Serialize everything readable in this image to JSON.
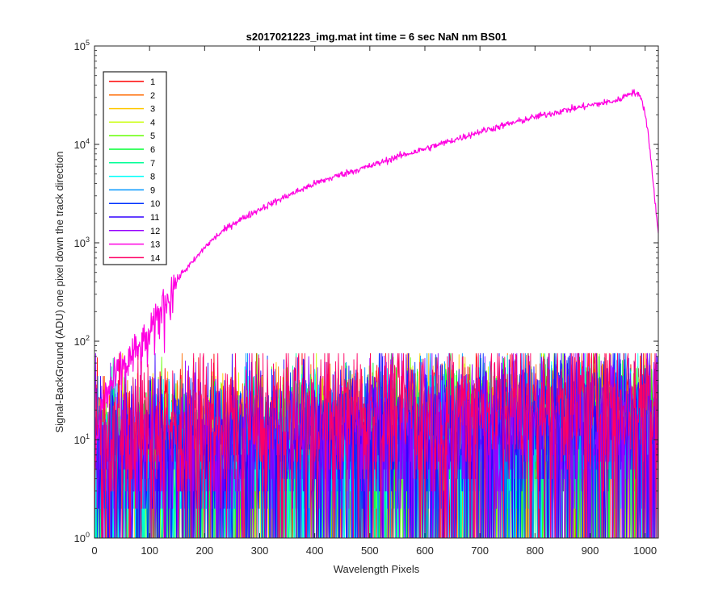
{
  "chart_data": {
    "type": "line",
    "title": "s2017021223_img.mat int time = 6 sec  NaN nm BS01",
    "xlabel": "Wavelength Pixels",
    "ylabel": "Signal-BackGround (ADU) one pixel down the track direction",
    "xlim": [
      0,
      1024
    ],
    "ylim": [
      1,
      100000
    ],
    "yscale": "log",
    "x_ticks": [
      "0",
      "100",
      "200",
      "300",
      "400",
      "500",
      "600",
      "700",
      "800",
      "900",
      "1000"
    ],
    "x_tick_values": [
      0,
      100,
      200,
      300,
      400,
      500,
      600,
      700,
      800,
      900,
      1000
    ],
    "y_tick_values": [
      1,
      10,
      100,
      1000,
      10000,
      100000
    ],
    "y_tick_exponents": [
      "0",
      "1",
      "2",
      "3",
      "4",
      "5"
    ],
    "y_tick_base": "10",
    "grid": false,
    "legend_position": "top-left",
    "series": [
      {
        "name": "1",
        "color": "#ff0000",
        "kind": "noise",
        "level": 12
      },
      {
        "name": "2",
        "color": "#ff6a00",
        "kind": "noise",
        "level": 12
      },
      {
        "name": "3",
        "color": "#ffc800",
        "kind": "noise",
        "level": 11
      },
      {
        "name": "4",
        "color": "#c8ff00",
        "kind": "noise",
        "level": 10
      },
      {
        "name": "5",
        "color": "#64ff00",
        "kind": "noise",
        "level": 10
      },
      {
        "name": "6",
        "color": "#00ff32",
        "kind": "noise",
        "level": 10
      },
      {
        "name": "7",
        "color": "#00ff96",
        "kind": "noise",
        "level": 10
      },
      {
        "name": "8",
        "color": "#00fffa",
        "kind": "noise",
        "level": 10
      },
      {
        "name": "9",
        "color": "#0096ff",
        "kind": "noise",
        "level": 11
      },
      {
        "name": "10",
        "color": "#0032ff",
        "kind": "noise",
        "level": 13
      },
      {
        "name": "11",
        "color": "#3200ff",
        "kind": "noise",
        "level": 14
      },
      {
        "name": "12",
        "color": "#9600ff",
        "kind": "noise",
        "level": 15
      },
      {
        "name": "13",
        "color": "#ff00e1",
        "kind": "signal",
        "profile": [
          [
            0,
            5
          ],
          [
            10,
            18
          ],
          [
            20,
            28
          ],
          [
            30,
            35
          ],
          [
            40,
            45
          ],
          [
            50,
            55
          ],
          [
            60,
            60
          ],
          [
            70,
            75
          ],
          [
            80,
            80
          ],
          [
            90,
            95
          ],
          [
            100,
            110
          ],
          [
            110,
            150
          ],
          [
            120,
            210
          ],
          [
            130,
            270
          ],
          [
            140,
            330
          ],
          [
            150,
            420
          ],
          [
            160,
            500
          ],
          [
            180,
            650
          ],
          [
            200,
            900
          ],
          [
            220,
            1150
          ],
          [
            250,
            1550
          ],
          [
            300,
            2200
          ],
          [
            350,
            3000
          ],
          [
            400,
            4000
          ],
          [
            450,
            5000
          ],
          [
            500,
            6000
          ],
          [
            550,
            7500
          ],
          [
            600,
            9000
          ],
          [
            650,
            11000
          ],
          [
            700,
            13500
          ],
          [
            750,
            16000
          ],
          [
            800,
            19000
          ],
          [
            850,
            22000
          ],
          [
            900,
            25000
          ],
          [
            950,
            28000
          ],
          [
            975,
            34000
          ],
          [
            985,
            33000
          ],
          [
            995,
            28000
          ],
          [
            1005,
            14000
          ],
          [
            1015,
            4000
          ],
          [
            1024,
            1200
          ]
        ]
      },
      {
        "name": "14",
        "color": "#ff0064",
        "kind": "noise",
        "level": 22
      }
    ]
  }
}
